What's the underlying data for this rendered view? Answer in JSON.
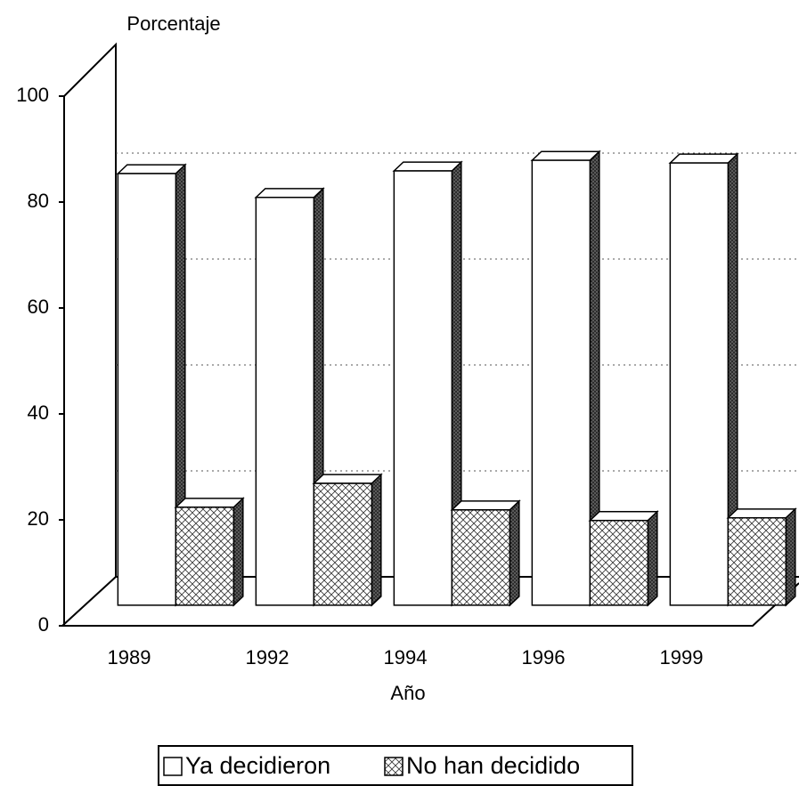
{
  "chart_data": {
    "type": "bar3d",
    "ylabel": "Porcentaje",
    "xlabel": "Año",
    "categories": [
      "1989",
      "1992",
      "1994",
      "1996",
      "1999"
    ],
    "series": [
      {
        "name": "Ya decidieron",
        "color": "#ffffff",
        "values": [
          81.5,
          77,
          82,
          84,
          83.5
        ]
      },
      {
        "name": "No han decidido",
        "color": "#ffffff",
        "hatch": true,
        "values": [
          18.5,
          23,
          18,
          16,
          16.5
        ]
      }
    ],
    "ylim": [
      0,
      100
    ],
    "yticks": [
      0,
      20,
      40,
      60,
      80,
      100
    ],
    "grid": true
  }
}
